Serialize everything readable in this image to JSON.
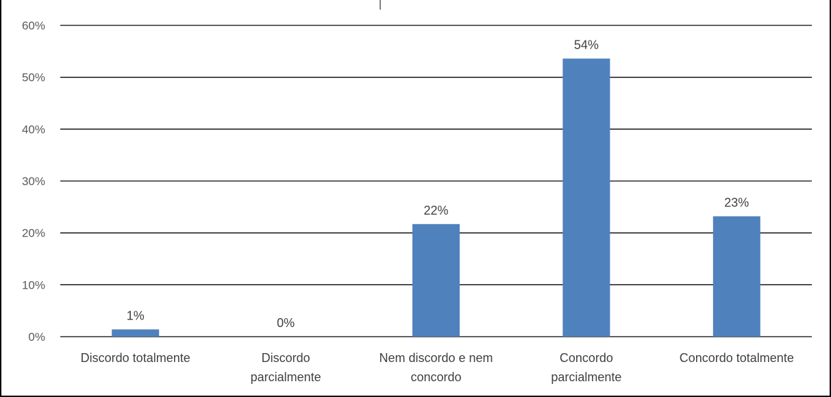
{
  "chart_data": {
    "type": "bar",
    "categories": [
      [
        "Discordo totalmente"
      ],
      [
        "Discordo",
        "parcialmente"
      ],
      [
        "Nem discordo e nem",
        "concordo"
      ],
      [
        "Concordo",
        "parcialmente"
      ],
      [
        "Concordo totalmente"
      ]
    ],
    "values": [
      1.4,
      0,
      21.7,
      53.6,
      23.2
    ],
    "data_labels": [
      "1%",
      "0%",
      "22%",
      "54%",
      "23%"
    ],
    "ylim": [
      0,
      60
    ],
    "y_ticks": [
      "0%",
      "10%",
      "20%",
      "30%",
      "40%",
      "50%",
      "60%"
    ],
    "grid": true,
    "bar_color": "#4F81BD",
    "grid_color": "#000000"
  }
}
